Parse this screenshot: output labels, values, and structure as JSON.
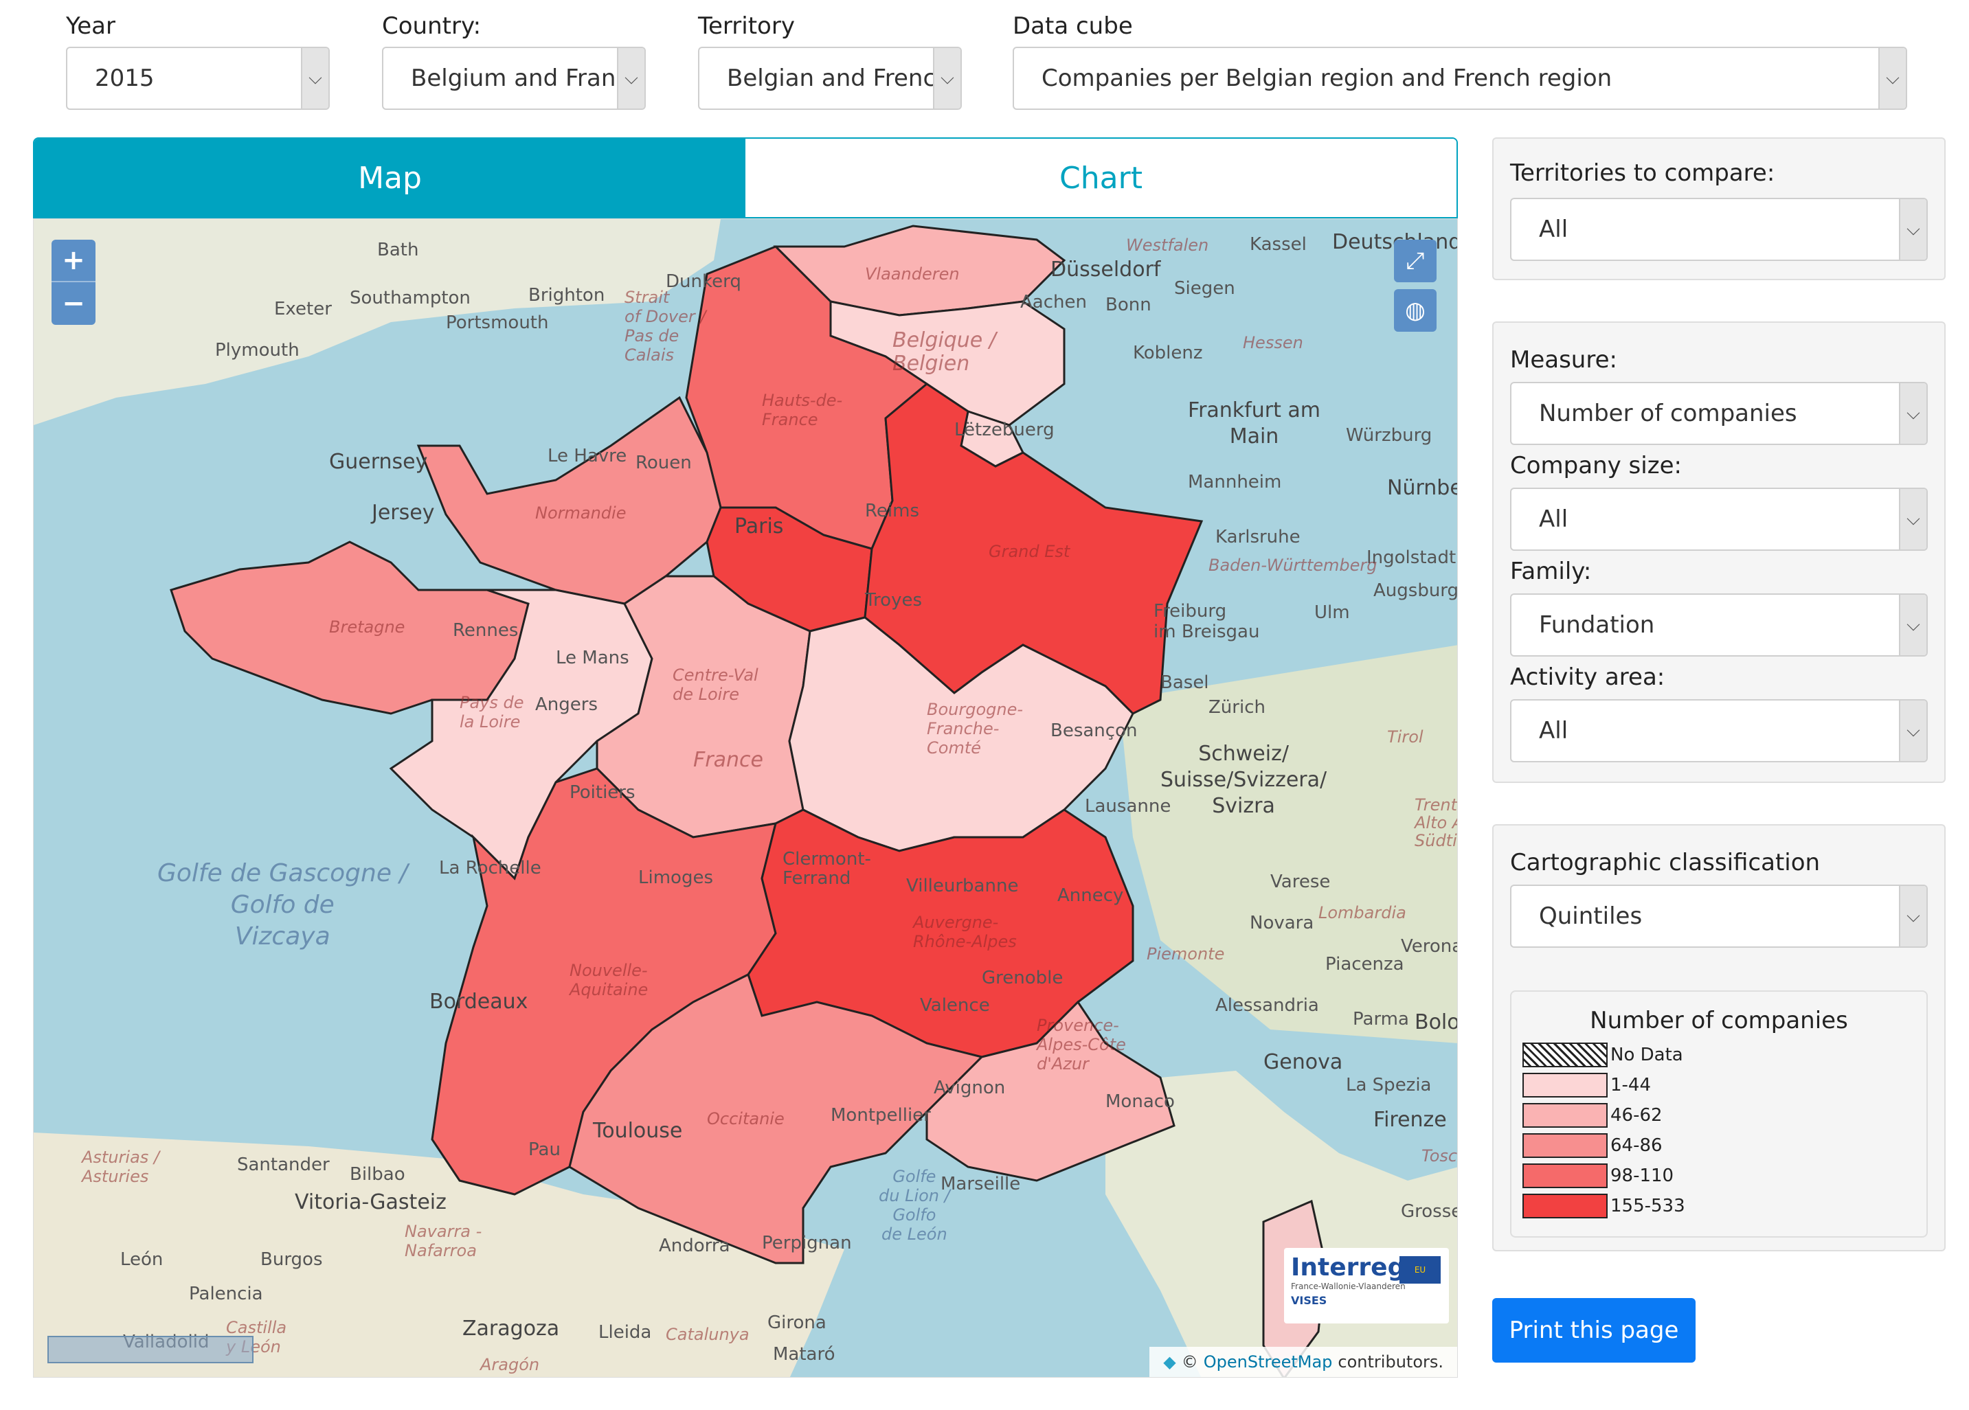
{
  "filters": {
    "year": {
      "label": "Year",
      "value": "2015"
    },
    "country": {
      "label": "Country:",
      "value": "Belgium and Franc"
    },
    "territory": {
      "label": "Territory",
      "value": "Belgian and French"
    },
    "datacube": {
      "label": "Data cube",
      "value": "Companies per Belgian region and French region"
    }
  },
  "tabs": {
    "map": "Map",
    "chart": "Chart"
  },
  "map": {
    "zoom_in": "+",
    "zoom_out": "−",
    "labels": {
      "bath": "Bath",
      "exeter": "Exeter",
      "southampton": "Southampton",
      "brighton": "Brighton",
      "portsmouth": "Portsmouth",
      "plymouth": "Plymouth",
      "dunkerque": "Dunkerq",
      "guernsey": "Guernsey",
      "jersey": "Jersey",
      "le_havre": "Le Havre",
      "rouen": "Rouen",
      "paris": "Paris",
      "reims": "Reims",
      "rennes": "Rennes",
      "le_mans": "Le Mans",
      "angers": "Angers",
      "troyes": "Troyes",
      "france": "France",
      "poitiers": "Poitiers",
      "la_rochelle": "La Rochelle",
      "limoges": "Limoges",
      "clermont": "Clermont-\nFerrand",
      "villeurbanne": "Villeurbanne",
      "annecy": "Annecy",
      "grenoble": "Grenoble",
      "valence": "Valence",
      "bordeaux": "Bordeaux",
      "toulouse": "Toulouse",
      "montpellier": "Montpellier",
      "avignon": "Avignon",
      "marseille": "Marseille",
      "monaco": "Monaco",
      "pau": "Pau",
      "andorra": "Andorra",
      "perpignan": "Perpignan",
      "besancon": "Besançon",
      "dusseldorf": "Düsseldorf",
      "aachen": "Aachen",
      "bonn": "Bonn",
      "siegen": "Siegen",
      "kassel": "Kassel",
      "deutschland": "Deutschland",
      "koblenz": "Koblenz",
      "frankfurt": "Frankfurt am\nMain",
      "wurzburg": "Würzburg",
      "mannheim": "Mannheim",
      "nurnberg": "Nürnbe",
      "karlsruhe": "Karlsruhe",
      "ingolstadt": "Ingolstadt",
      "augsburg": "Augsburg",
      "ulm": "Ulm",
      "freiburg": "Freiburg\nim Breisgau",
      "basel": "Basel",
      "zurich": "Zürich",
      "schweiz": "Schweiz/\nSuisse/Svizzera/\nSvizra",
      "lausanne": "Lausanne",
      "varese": "Varese",
      "novara": "Novara",
      "piacenza": "Piacenza",
      "verona": "Verona",
      "alessandria": "Alessandria",
      "parma": "Parma",
      "bologna": "Bolo",
      "genova": "Genova",
      "la_spezia": "La Spezia",
      "firenze": "Firenze",
      "grosse": "Grosse",
      "santander": "Santander",
      "bilbao": "Bilbao",
      "vitoria": "Vitoria-Gasteiz",
      "leon": "León",
      "burgos": "Burgos",
      "palencia": "Palencia",
      "zaragoza": "Zaragoza",
      "lleida": "Lleida",
      "girona": "Girona",
      "mataro": "Mataró",
      "valladolid": "Valladolid",
      "aragon": "Aragón",
      "catalunya": "Catalunya",
      "asturias": "Asturias /\nAsturies",
      "navarra": "Navarra -\nNafarroa",
      "castilla": "Castilla\ny León",
      "golfe_gascogne": "Golfe de Gascogne /\nGolfo de\nVizcaya",
      "golfe_lion": "Golfe\ndu Lion /\nGolfo\nde León",
      "strait_dover": "Strait\nof Dover /\nPas de\nCalais",
      "belgique": "Belgique /\nBelgien",
      "vlaanderen": "Vlaanderen",
      "letzebuerg": "Lëtzebuerg",
      "hauts": "Hauts-de-\nFrance",
      "normandie": "Normandie",
      "grand_est": "Grand Est",
      "bretagne": "Bretagne",
      "pays_loire": "Pays de\nla Loire",
      "centre": "Centre-Val\nde Loire",
      "bourgogne": "Bourgogne-\nFranche-\nComté",
      "nouvelle": "Nouvelle-\nAquitaine",
      "auvergne": "Auvergne-\nRhône-Alpes",
      "occitanie": "Occitanie",
      "provence": "Provence-\nAlpes-Côte\nd'Azur",
      "hessen": "Hessen",
      "westfalen": "Westfalen",
      "baden": "Baden-Württemberg",
      "lombardia": "Lombardia",
      "piemonte": "Piemonte",
      "toscana": "Tosca",
      "trentino": "Trenti\nAlto Ad\nSüdti",
      "tirol": "Tirol"
    },
    "interreg": {
      "title": "Interreg",
      "subtitle": "France-Wallonie-Vlaanderen",
      "vises": "VISES",
      "eu": "EU"
    },
    "attribution": {
      "prefix": "©",
      "link": "OpenStreetMap",
      "suffix": "contributors."
    }
  },
  "panel1": {
    "label": "Territories to compare:",
    "value": "All"
  },
  "panel2": {
    "measure": {
      "label": "Measure:",
      "value": "Number of companies"
    },
    "size": {
      "label": "Company size:",
      "value": "All"
    },
    "family": {
      "label": "Family:",
      "value": "Fundation"
    },
    "activity": {
      "label": "Activity area:",
      "value": "All"
    }
  },
  "panel3": {
    "label": "Cartographic classification",
    "value": "Quintiles",
    "legend": {
      "title": "Number of companies",
      "items": [
        {
          "label": "No Data",
          "color": "hatch"
        },
        {
          "label": "1-44",
          "color": "#fcd6d6"
        },
        {
          "label": "46-62",
          "color": "#fab3b3"
        },
        {
          "label": "64-86",
          "color": "#f78f8f"
        },
        {
          "label": "98-110",
          "color": "#f56a6a"
        },
        {
          "label": "155-533",
          "color": "#f24141"
        }
      ]
    }
  },
  "print_label": "Print this page",
  "colors": {
    "accent": "#00a3c0",
    "print": "#0a7af5"
  }
}
